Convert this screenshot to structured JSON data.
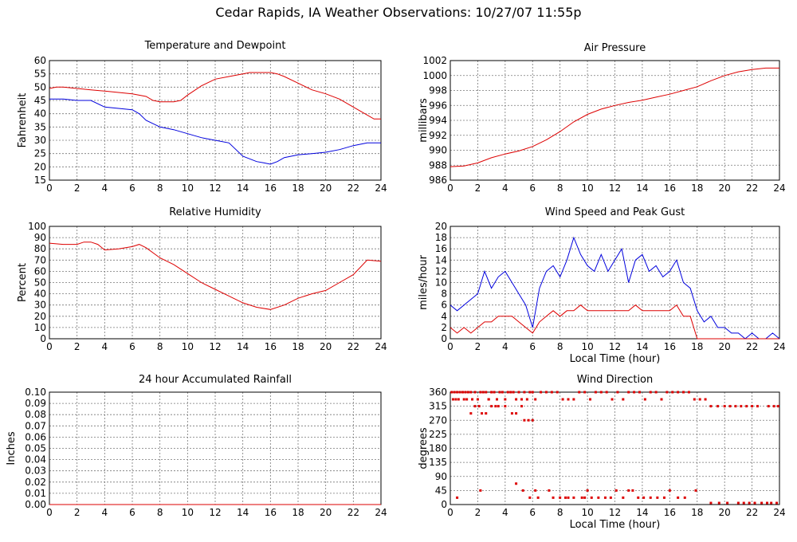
{
  "page": {
    "title": "Cedar Rapids, IA Weather Observations: 10/27/07 11:55p"
  },
  "colors": {
    "red": "#dd0000",
    "blue": "#0000dd",
    "grid": "#777777"
  },
  "chart_data": [
    {
      "id": "temp",
      "type": "line",
      "title": "Temperature and Dewpoint",
      "ylabel": "Fahrenheit",
      "xlabel": "",
      "xlim": [
        0,
        24
      ],
      "ylim": [
        15,
        60
      ],
      "yticks": [
        15,
        20,
        25,
        30,
        35,
        40,
        45,
        50,
        55,
        60
      ],
      "xticks": [
        0,
        2,
        4,
        6,
        8,
        10,
        12,
        14,
        16,
        18,
        20,
        22,
        24
      ],
      "series": [
        {
          "color": "red",
          "x": [
            0,
            0.5,
            1,
            2,
            3,
            4,
            5,
            6,
            7,
            7.5,
            8,
            9,
            9.5,
            10,
            11,
            12,
            13,
            14,
            14.5,
            15,
            16,
            16.5,
            17,
            18,
            19,
            20,
            21,
            22,
            23,
            23.5,
            24
          ],
          "y": [
            49.5,
            50,
            50,
            49.5,
            49,
            48.5,
            48,
            47.5,
            46.5,
            45,
            44.5,
            44.5,
            45,
            47,
            50.5,
            53,
            54,
            55,
            55.5,
            55.5,
            55.5,
            55,
            54,
            51.5,
            49,
            47.5,
            45.5,
            42.5,
            39.5,
            38,
            38
          ]
        },
        {
          "color": "blue",
          "x": [
            0,
            1,
            2,
            3,
            4,
            5,
            6,
            6.5,
            7,
            8,
            9,
            10,
            11,
            12,
            13,
            14,
            14.5,
            15,
            15.5,
            16,
            16.5,
            17,
            18,
            19,
            20,
            21,
            22,
            23,
            24
          ],
          "y": [
            45.5,
            45.5,
            45,
            45,
            42.5,
            42,
            41.5,
            40,
            37.5,
            35,
            34,
            32.5,
            31,
            30,
            29,
            24,
            23,
            22,
            21.5,
            21,
            22,
            23.5,
            24.5,
            25,
            25.5,
            26.5,
            28,
            29,
            29
          ]
        }
      ]
    },
    {
      "id": "pressure",
      "type": "line",
      "title": "Air Pressure",
      "ylabel": "millibars",
      "xlabel": "",
      "xlim": [
        0,
        24
      ],
      "ylim": [
        986,
        1002
      ],
      "yticks": [
        986,
        988,
        990,
        992,
        994,
        996,
        998,
        1000,
        1002
      ],
      "xticks": [
        0,
        2,
        4,
        6,
        8,
        10,
        12,
        14,
        16,
        18,
        20,
        22,
        24
      ],
      "series": [
        {
          "color": "red",
          "x": [
            0,
            1,
            2,
            3,
            4,
            5,
            6,
            7,
            8,
            9,
            10,
            11,
            12,
            13,
            14,
            15,
            16,
            17,
            18,
            19,
            20,
            21,
            22,
            23,
            24
          ],
          "y": [
            987.8,
            987.9,
            988.3,
            989,
            989.5,
            989.9,
            990.5,
            991.4,
            992.5,
            993.8,
            994.8,
            995.5,
            996,
            996.4,
            996.7,
            997.1,
            997.5,
            998,
            998.5,
            999.3,
            1000,
            1000.5,
            1000.8,
            1001,
            1001
          ]
        }
      ]
    },
    {
      "id": "humidity",
      "type": "line",
      "title": "Relative Humidity",
      "ylabel": "Percent",
      "xlabel": "",
      "xlim": [
        0,
        24
      ],
      "ylim": [
        0,
        100
      ],
      "yticks": [
        0,
        10,
        20,
        30,
        40,
        50,
        60,
        70,
        80,
        90,
        100
      ],
      "xticks": [
        0,
        2,
        4,
        6,
        8,
        10,
        12,
        14,
        16,
        18,
        20,
        22,
        24
      ],
      "series": [
        {
          "color": "red",
          "x": [
            0,
            1,
            2,
            2.5,
            3,
            3.5,
            4,
            5,
            6,
            6.5,
            7,
            8,
            9,
            10,
            11,
            12,
            13,
            14,
            15,
            16,
            17,
            18,
            19,
            20,
            21,
            22,
            23,
            24
          ],
          "y": [
            85,
            84,
            84,
            86,
            86,
            84,
            79,
            80,
            82,
            84,
            81,
            72,
            66,
            58,
            50,
            44,
            38,
            32,
            28,
            26,
            30,
            36,
            40,
            43,
            50,
            57,
            70,
            69
          ]
        }
      ]
    },
    {
      "id": "wind",
      "type": "line",
      "title": "Wind Speed and Peak Gust",
      "ylabel": "miles/hour",
      "xlabel": "Local Time (hour)",
      "xlim": [
        0,
        24
      ],
      "ylim": [
        0,
        20
      ],
      "yticks": [
        0,
        2,
        4,
        6,
        8,
        10,
        12,
        14,
        16,
        18,
        20
      ],
      "xticks": [
        0,
        2,
        4,
        6,
        8,
        10,
        12,
        14,
        16,
        18,
        20,
        22,
        24
      ],
      "series": [
        {
          "color": "blue",
          "x": [
            0,
            0.5,
            1,
            1.5,
            2,
            2.5,
            3,
            3.5,
            4,
            4.5,
            5,
            5.5,
            6,
            6.5,
            7,
            7.5,
            8,
            8.5,
            9,
            9.5,
            10,
            10.5,
            11,
            11.5,
            12,
            12.5,
            13,
            13.5,
            14,
            14.5,
            15,
            15.5,
            16,
            16.5,
            17,
            17.5,
            18,
            18.5,
            19,
            19.5,
            20,
            20.5,
            21,
            21.5,
            22,
            22.5,
            23,
            23.5,
            24
          ],
          "y": [
            6,
            5,
            6,
            7,
            8,
            12,
            9,
            11,
            12,
            10,
            8,
            6,
            2,
            9,
            12,
            13,
            11,
            14,
            18,
            15,
            13,
            12,
            15,
            12,
            14,
            16,
            10,
            14,
            15,
            12,
            13,
            11,
            12,
            14,
            10,
            9,
            5,
            3,
            4,
            2,
            2,
            1,
            1,
            0,
            1,
            0,
            0,
            1,
            0
          ]
        },
        {
          "color": "red",
          "x": [
            0,
            0.5,
            1,
            1.5,
            2,
            2.5,
            3,
            3.5,
            4,
            4.5,
            5,
            5.5,
            6,
            6.5,
            7,
            7.5,
            8,
            8.5,
            9,
            9.5,
            10,
            10.5,
            11,
            11.5,
            12,
            12.5,
            13,
            13.5,
            14,
            14.5,
            15,
            15.5,
            16,
            16.5,
            17,
            17.5,
            18,
            18.5,
            19,
            24
          ],
          "y": [
            2,
            1,
            2,
            1,
            2,
            3,
            3,
            4,
            4,
            4,
            3,
            2,
            1,
            3,
            4,
            5,
            4,
            5,
            5,
            6,
            5,
            5,
            5,
            5,
            5,
            5,
            5,
            6,
            5,
            5,
            5,
            5,
            5,
            6,
            4,
            4,
            0,
            0,
            0,
            0
          ]
        }
      ]
    },
    {
      "id": "rain",
      "type": "line",
      "title": "24 hour Accumulated Rainfall",
      "ylabel": "Inches",
      "xlabel": "",
      "xlim": [
        0,
        24
      ],
      "ylim": [
        0,
        0.1
      ],
      "yticks": [
        "0.00",
        "0.01",
        "0.02",
        "0.03",
        "0.04",
        "0.05",
        "0.06",
        "0.07",
        "0.08",
        "0.09",
        "0.10"
      ],
      "xticks": [
        0,
        2,
        4,
        6,
        8,
        10,
        12,
        14,
        16,
        18,
        20,
        22,
        24
      ],
      "series": [
        {
          "color": "red",
          "x": [
            0,
            24
          ],
          "y": [
            0,
            0
          ]
        }
      ]
    },
    {
      "id": "direction",
      "type": "scatter",
      "title": "Wind Direction",
      "ylabel": "degrees",
      "xlabel": "Local Time (hour)",
      "xlim": [
        0,
        24
      ],
      "ylim": [
        0,
        360
      ],
      "yticks": [
        0,
        45,
        90,
        135,
        180,
        225,
        270,
        315,
        360
      ],
      "xticks": [
        0,
        2,
        4,
        6,
        8,
        10,
        12,
        14,
        16,
        18,
        20,
        22,
        24
      ],
      "series": [
        {
          "color": "red",
          "x": [
            0.1,
            0.3,
            0.5,
            0.7,
            0.9,
            1.1,
            1.3,
            0.2,
            0.6,
            0.4,
            1.0,
            1.2,
            1.6,
            1.5,
            1.8,
            2.0,
            2.2,
            2.4,
            2.6,
            2.8,
            3.0,
            3.2,
            3.4,
            3.6,
            3.8,
            4.0,
            4.2,
            4.4,
            4.6,
            4.8,
            5.0,
            5.2,
            5.4,
            5.6,
            5.8,
            6.0,
            6.2,
            6.6,
            7.0,
            7.4,
            7.8,
            8.2,
            8.6,
            9.0,
            9.4,
            9.8,
            10.2,
            10.6,
            11.0,
            11.4,
            11.8,
            12.2,
            12.6,
            13.0,
            13.4,
            13.8,
            14.2,
            14.6,
            15.0,
            15.4,
            15.8,
            16.2,
            16.6,
            17.0,
            17.4,
            17.8,
            18.2,
            18.6,
            19.0,
            19.5,
            20.0,
            20.4,
            20.8,
            21.2,
            21.6,
            22.0,
            22.4,
            23.2,
            23.6,
            23.9,
            2.1,
            2.3,
            2.6,
            1.5,
            1.8,
            4.8,
            5.4,
            5.7,
            3.0,
            3.3,
            4.5,
            4.0,
            5.2,
            6.0,
            2.8,
            3.5,
            0.5,
            5.3,
            13.0,
            7.2,
            10.0,
            6.4,
            8.4,
            9.8,
            2.2,
            5.8,
            4.8,
            6.2,
            7.5,
            8.0,
            8.6,
            9.0,
            9.6,
            10.3,
            10.8,
            11.3,
            11.7,
            12.1,
            12.6,
            13.3,
            13.7,
            14.1,
            14.6,
            15.1,
            15.6,
            16.0,
            16.6,
            17.1,
            17.9,
            19.0,
            19.6,
            20.2,
            21.0,
            21.4,
            21.8,
            22.2,
            22.7,
            23.1,
            23.4,
            23.8
          ],
          "y": [
            360,
            360,
            360,
            360,
            360,
            360,
            360,
            337,
            337,
            337,
            337,
            337,
            337,
            360,
            360,
            337,
            360,
            360,
            360,
            337,
            360,
            360,
            337,
            360,
            360,
            337,
            360,
            360,
            360,
            337,
            360,
            337,
            360,
            337,
            360,
            360,
            337,
            360,
            360,
            360,
            360,
            337,
            337,
            337,
            360,
            360,
            337,
            360,
            360,
            360,
            337,
            360,
            337,
            360,
            360,
            360,
            337,
            360,
            360,
            337,
            360,
            360,
            360,
            360,
            360,
            337,
            337,
            337,
            315,
            315,
            315,
            315,
            315,
            315,
            315,
            315,
            315,
            315,
            315,
            315,
            315,
            292,
            292,
            292,
            315,
            292,
            270,
            270,
            315,
            315,
            292,
            315,
            315,
            270,
            337,
            315,
            22,
            45,
            45,
            45,
            45,
            22,
            22,
            22,
            45,
            22,
            67,
            45,
            22,
            22,
            22,
            22,
            22,
            22,
            22,
            22,
            22,
            45,
            22,
            45,
            22,
            22,
            22,
            22,
            22,
            45,
            22,
            22,
            45,
            5,
            5,
            5,
            5,
            5,
            5,
            5,
            5,
            5,
            5,
            5
          ]
        }
      ]
    }
  ]
}
